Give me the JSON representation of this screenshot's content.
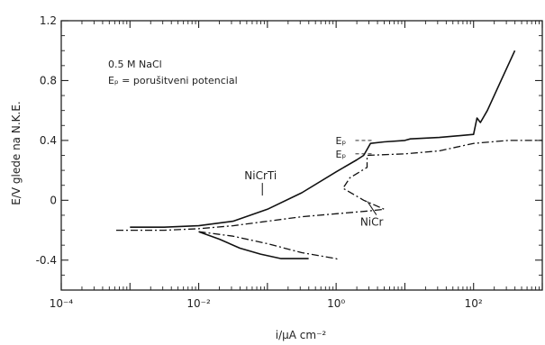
{
  "chart_data": {
    "type": "line",
    "title": "",
    "xlabel": "i/µA cm⁻²",
    "ylabel": "E/V glede na N.K.E.",
    "x_scale": "log",
    "xlim_exp": [
      -4,
      3
    ],
    "ylim": [
      -0.6,
      1.2
    ],
    "x_tick_exponents": [
      -4,
      -2,
      0,
      2
    ],
    "x_tick_labels": [
      "10⁻⁴",
      "10⁻²",
      "10⁰",
      "10²"
    ],
    "y_ticks": [
      -0.4,
      0,
      0.4,
      0.8,
      1.2
    ],
    "y_tick_labels": [
      "-0.4",
      "0",
      "0.4",
      "0.8",
      "1.2"
    ],
    "annotations": [
      "0.5 M  NaCl",
      "Eₚ = porušitveni potencial"
    ],
    "ep_labels": [
      "Eₚ",
      "Eₚ"
    ],
    "ep_values": [
      0.4,
      0.31
    ],
    "series": [
      {
        "name": "NiCrTi",
        "style": "solid",
        "label_x_log": -1.1,
        "label_y": 0.14,
        "points": [
          [
            -3.0,
            -0.18
          ],
          [
            -2.5,
            -0.18
          ],
          [
            -2.0,
            -0.17
          ],
          [
            -1.5,
            -0.14
          ],
          [
            -1.0,
            -0.06
          ],
          [
            -0.5,
            0.05
          ],
          [
            0.0,
            0.19
          ],
          [
            0.3,
            0.27
          ],
          [
            0.4,
            0.3
          ],
          [
            0.45,
            0.34
          ],
          [
            0.5,
            0.38
          ],
          [
            0.7,
            0.39
          ],
          [
            1.0,
            0.4
          ],
          [
            1.08,
            0.41
          ],
          [
            1.5,
            0.42
          ],
          [
            2.0,
            0.44
          ],
          [
            2.05,
            0.55
          ],
          [
            2.1,
            0.52
          ],
          [
            2.2,
            0.6
          ],
          [
            2.4,
            0.8
          ],
          [
            2.6,
            1.0
          ]
        ],
        "cathodic_branch": [
          [
            -2.0,
            -0.21
          ],
          [
            -1.7,
            -0.26
          ],
          [
            -1.4,
            -0.32
          ],
          [
            -1.1,
            -0.36
          ],
          [
            -0.8,
            -0.39
          ],
          [
            -0.4,
            -0.39
          ]
        ]
      },
      {
        "name": "NiCr",
        "style": "dashdot",
        "label_x_log": 0.35,
        "label_y": -0.17,
        "points": [
          [
            -3.2,
            -0.2
          ],
          [
            -2.5,
            -0.2
          ],
          [
            -2.0,
            -0.19
          ],
          [
            -1.5,
            -0.17
          ],
          [
            -1.0,
            -0.14
          ],
          [
            -0.5,
            -0.11
          ],
          [
            0.0,
            -0.09
          ],
          [
            0.5,
            -0.07
          ],
          [
            0.7,
            -0.06
          ],
          [
            0.4,
            0.0
          ],
          [
            0.1,
            0.08
          ],
          [
            0.2,
            0.15
          ],
          [
            0.45,
            0.22
          ],
          [
            0.45,
            0.3
          ],
          [
            1.0,
            0.31
          ],
          [
            1.5,
            0.33
          ],
          [
            2.0,
            0.38
          ],
          [
            2.5,
            0.4
          ],
          [
            3.0,
            0.4
          ]
        ],
        "cathodic_branch": [
          [
            -2.0,
            -0.21
          ],
          [
            -1.5,
            -0.24
          ],
          [
            -1.0,
            -0.29
          ],
          [
            -0.5,
            -0.35
          ],
          [
            0.0,
            -0.39
          ],
          [
            0.05,
            -0.4
          ]
        ]
      }
    ]
  }
}
